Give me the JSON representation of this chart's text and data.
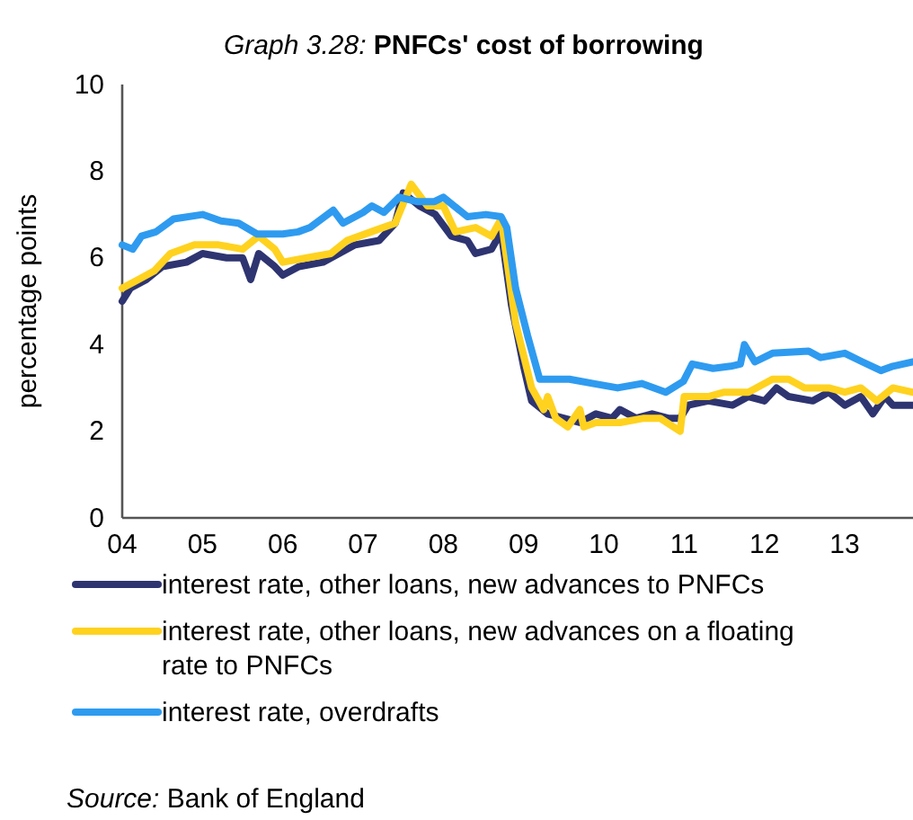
{
  "chart_data": {
    "type": "line",
    "title": "Graph 3.28: PNFCs' cost of borrowing",
    "ylabel": "percentage points",
    "xlim": [
      2004,
      2013.85
    ],
    "xticks": [
      {
        "value": 2004,
        "label": "04"
      },
      {
        "value": 2005,
        "label": "05"
      },
      {
        "value": 2006,
        "label": "06"
      },
      {
        "value": 2007,
        "label": "07"
      },
      {
        "value": 2008,
        "label": "08"
      },
      {
        "value": 2009,
        "label": "09"
      },
      {
        "value": 2010,
        "label": "10"
      },
      {
        "value": 2011,
        "label": "11"
      },
      {
        "value": 2012,
        "label": "12"
      },
      {
        "value": 2013,
        "label": "13"
      }
    ],
    "ylim": [
      0,
      10
    ],
    "yticks": [
      0,
      2,
      4,
      6,
      8,
      10
    ],
    "grid": false,
    "legend": "bottom",
    "line_style": "solid",
    "marker": "none",
    "annotations": [
      "Source: Bank of England"
    ],
    "series": [
      {
        "name": "interest rate, other loans, new advances to PNFCs",
        "color": "#2e3470",
        "x": [
          2004,
          2004.1,
          2004.3,
          2004.5,
          2004.8,
          2005,
          2005.3,
          2005.5,
          2005.6,
          2005.7,
          2005.9,
          2006,
          2006.2,
          2006.5,
          2006.7,
          2006.9,
          2007.2,
          2007.4,
          2007.5,
          2007.7,
          2007.9,
          2008.1,
          2008.3,
          2008.4,
          2008.6,
          2008.72,
          2008.85,
          2009,
          2009.1,
          2009.3,
          2009.5,
          2009.7,
          2009.9,
          2010.1,
          2010.2,
          2010.4,
          2010.6,
          2010.8,
          2010.95,
          2011.05,
          2011.3,
          2011.6,
          2011.8,
          2012,
          2012.15,
          2012.3,
          2012.6,
          2012.8,
          2013,
          2013.2,
          2013.35,
          2013.5,
          2013.6,
          2013.85
        ],
        "values": [
          5.0,
          5.3,
          5.5,
          5.8,
          5.9,
          6.1,
          6.0,
          6.0,
          5.5,
          6.1,
          5.8,
          5.6,
          5.8,
          5.9,
          6.1,
          6.3,
          6.4,
          6.8,
          7.5,
          7.2,
          7.0,
          6.5,
          6.4,
          6.1,
          6.2,
          6.6,
          4.9,
          3.5,
          2.7,
          2.4,
          2.3,
          2.2,
          2.4,
          2.3,
          2.5,
          2.3,
          2.4,
          2.3,
          2.3,
          2.6,
          2.7,
          2.6,
          2.8,
          2.7,
          3.0,
          2.8,
          2.7,
          2.9,
          2.6,
          2.8,
          2.4,
          2.8,
          2.6,
          2.6
        ]
      },
      {
        "name": "interest rate, other loans, new advances on a floating rate to PNFCs",
        "color": "#ffd21f",
        "x": [
          2004,
          2004.2,
          2004.4,
          2004.6,
          2004.9,
          2005.2,
          2005.5,
          2005.7,
          2005.9,
          2006,
          2006.3,
          2006.6,
          2006.8,
          2007.1,
          2007.4,
          2007.6,
          2007.8,
          2008,
          2008.15,
          2008.4,
          2008.6,
          2008.72,
          2008.9,
          2009.1,
          2009.25,
          2009.3,
          2009.4,
          2009.55,
          2009.7,
          2009.75,
          2009.9,
          2010.2,
          2010.5,
          2010.7,
          2010.95,
          2011,
          2011.3,
          2011.5,
          2011.8,
          2012.1,
          2012.3,
          2012.5,
          2012.8,
          2013,
          2013.2,
          2013.4,
          2013.6,
          2013.85
        ],
        "values": [
          5.3,
          5.5,
          5.7,
          6.1,
          6.3,
          6.3,
          6.2,
          6.5,
          6.2,
          5.9,
          6.0,
          6.1,
          6.4,
          6.6,
          6.8,
          7.7,
          7.2,
          7.2,
          6.6,
          6.7,
          6.5,
          6.9,
          4.5,
          3.0,
          2.5,
          2.8,
          2.3,
          2.1,
          2.5,
          2.1,
          2.2,
          2.2,
          2.3,
          2.3,
          2.0,
          2.8,
          2.8,
          2.9,
          2.9,
          3.2,
          3.2,
          3.0,
          3.0,
          2.9,
          3.0,
          2.7,
          3.0,
          2.9
        ]
      },
      {
        "name": "interest rate, overdrafts",
        "color": "#2e9bf0",
        "x": [
          2004,
          2004.13,
          2004.24,
          2004.42,
          2004.64,
          2005,
          2005.23,
          2005.45,
          2005.68,
          2006,
          2006.19,
          2006.34,
          2006.63,
          2006.75,
          2007,
          2007.11,
          2007.26,
          2007.45,
          2007.67,
          2007.89,
          2008,
          2008.3,
          2008.53,
          2008.72,
          2008.79,
          2008.9,
          2009.05,
          2009.2,
          2009.57,
          2009.87,
          2010.17,
          2010.47,
          2010.77,
          2010.99,
          2011.1,
          2011.36,
          2011.58,
          2011.7,
          2011.75,
          2011.88,
          2012.1,
          2012.55,
          2012.7,
          2013,
          2013.22,
          2013.45,
          2013.6,
          2013.85
        ],
        "values": [
          6.3,
          6.2,
          6.5,
          6.6,
          6.9,
          7.0,
          6.85,
          6.8,
          6.55,
          6.55,
          6.6,
          6.7,
          7.1,
          6.8,
          7.05,
          7.2,
          7.05,
          7.4,
          7.3,
          7.3,
          7.4,
          6.95,
          7.0,
          6.95,
          6.7,
          5.3,
          4.2,
          3.2,
          3.2,
          3.1,
          3.0,
          3.1,
          2.9,
          3.15,
          3.55,
          3.45,
          3.5,
          3.55,
          4.0,
          3.6,
          3.8,
          3.85,
          3.7,
          3.8,
          3.6,
          3.4,
          3.5,
          3.6
        ]
      }
    ]
  }
}
